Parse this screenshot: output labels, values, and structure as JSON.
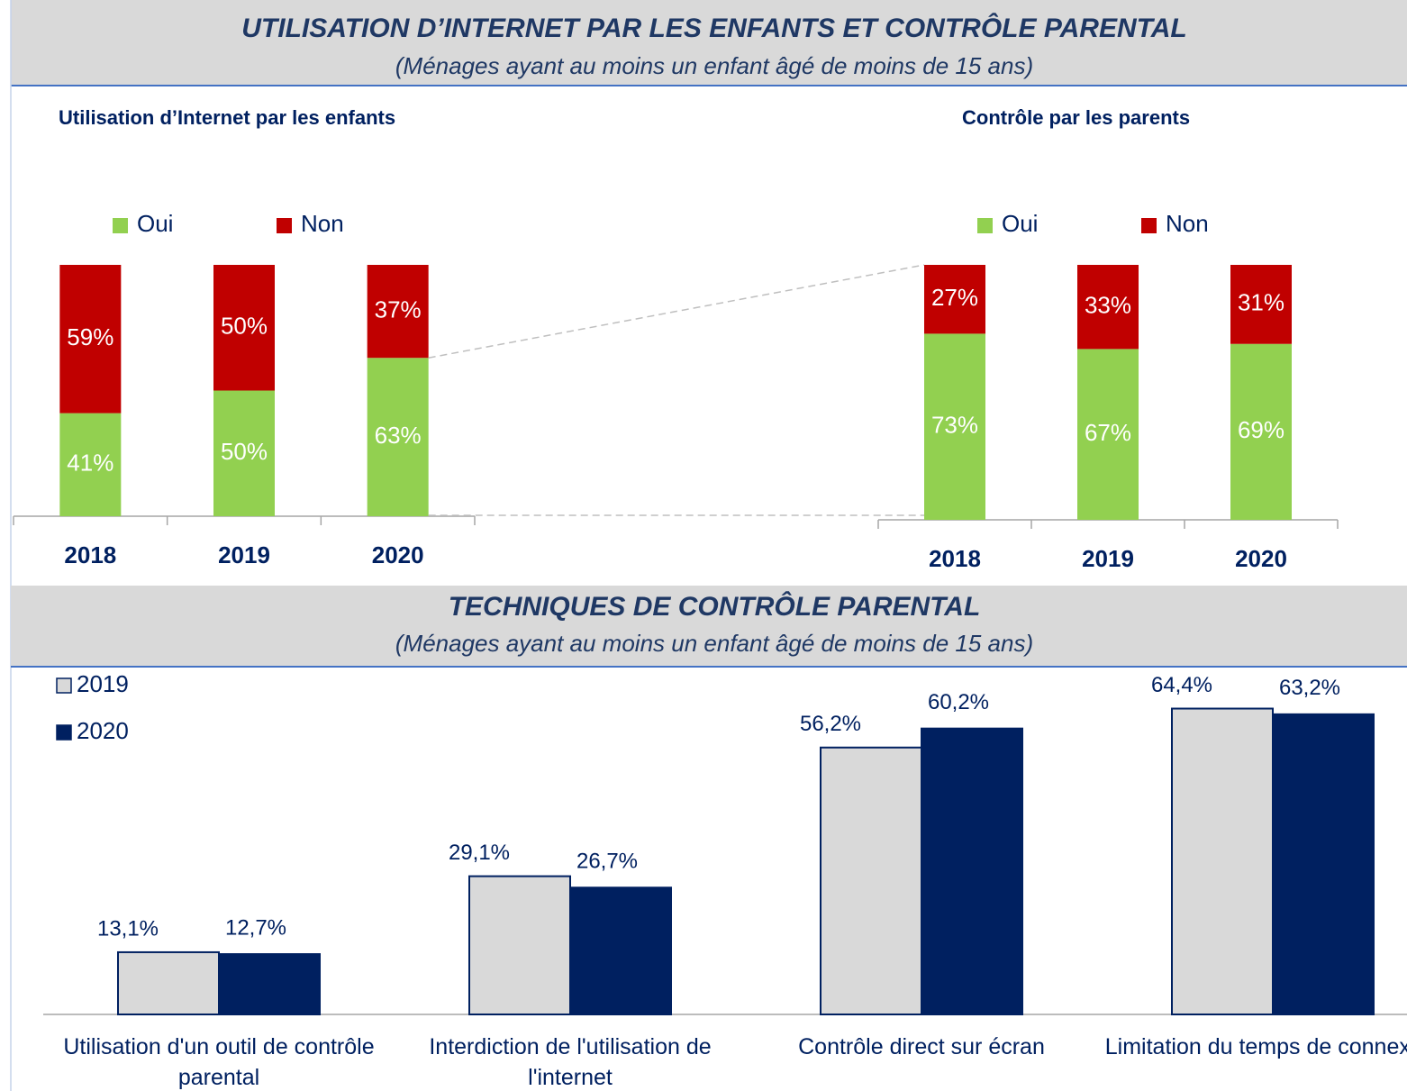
{
  "sections": [
    {
      "title": "UTILISATION D’INTERNET PAR LES ENFANTS ET CONTRÔLE PARENTAL",
      "subtitle": "(Ménages ayant au moins un enfant âgé de moins de 15 ans)"
    },
    {
      "title": "TECHNIQUES DE CONTRÔLE PARENTAL",
      "subtitle": "(Ménages ayant au moins un enfant âgé de moins de 15 ans)"
    }
  ],
  "chart_data": [
    {
      "type": "stacked_bar",
      "title": "Utilisation d’Internet par les enfants",
      "categories": [
        "2018",
        "2019",
        "2020"
      ],
      "series": [
        {
          "name": "Oui",
          "color": "#92d050",
          "values": [
            41,
            50,
            63
          ],
          "value_labels": [
            "41%",
            "50%",
            "63%"
          ]
        },
        {
          "name": "Non",
          "color": "#c00000",
          "values": [
            59,
            50,
            37
          ],
          "value_labels": [
            "59%",
            "50%",
            "37%"
          ]
        }
      ],
      "ylim": [
        0,
        100
      ]
    },
    {
      "type": "stacked_bar",
      "title": "Contrôle par les parents",
      "categories": [
        "2018",
        "2019",
        "2020"
      ],
      "series": [
        {
          "name": "Oui",
          "color": "#92d050",
          "values": [
            73,
            67,
            69
          ],
          "value_labels": [
            "73%",
            "67%",
            "69%"
          ]
        },
        {
          "name": "Non",
          "color": "#c00000",
          "values": [
            27,
            33,
            31
          ],
          "value_labels": [
            "27%",
            "33%",
            "31%"
          ]
        }
      ],
      "ylim": [
        0,
        100
      ]
    },
    {
      "type": "bar",
      "categories": [
        "Utilisation d'un outil de contrôle parental",
        "Interdiction de l'utilisation de l'internet",
        "Contrôle direct sur écran",
        "Limitation du temps de connexion"
      ],
      "series": [
        {
          "name": "2019",
          "color": "#d9d9d9",
          "values": [
            13.1,
            29.1,
            56.2,
            64.4
          ],
          "value_labels": [
            "13,1%",
            "29,1%",
            "56,2%",
            "64,4%"
          ]
        },
        {
          "name": "2020",
          "color": "#002060",
          "values": [
            12.7,
            26.7,
            60.2,
            63.2
          ],
          "value_labels": [
            "12,7%",
            "26,7%",
            "60,2%",
            "63,2%"
          ]
        }
      ],
      "ylim": [
        0,
        70
      ]
    }
  ]
}
